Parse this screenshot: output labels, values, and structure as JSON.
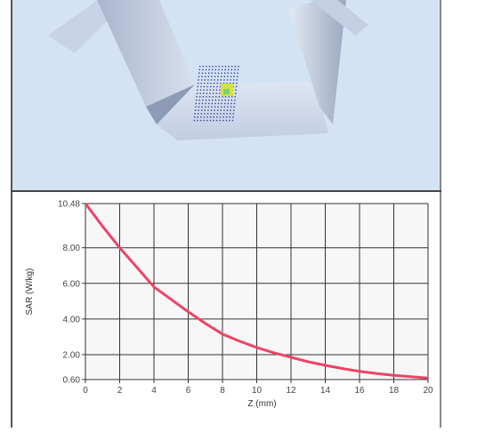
{
  "colors": {
    "scene_background": "#d3e3f3",
    "phantom": "#c4d0e4",
    "phantom_shadow": "#8e9bb6",
    "grid_dots": "#2a3c9a",
    "hotspot": "#d6e33a",
    "hotspot_core": "#7ad07a",
    "curve": "#ee4466",
    "plot_background": "#f7f7f7",
    "grid_lines": "#333333"
  },
  "chart_data": {
    "type": "line",
    "xlabel": "Z (mm)",
    "ylabel": "SAR (W/kg)",
    "xlim": [
      0,
      20
    ],
    "ylim": [
      0.6,
      10.48
    ],
    "x_ticks": [
      0,
      2,
      4,
      6,
      8,
      10,
      12,
      14,
      16,
      18,
      20
    ],
    "x_tick_labels": [
      "0",
      "2",
      "4",
      "6",
      "8",
      "10",
      "12",
      "14",
      "16",
      "18",
      "20"
    ],
    "y_ticks": [
      0.6,
      2,
      4,
      6,
      8,
      10.48
    ],
    "y_tick_labels": [
      "0.60",
      "2.00",
      "4.00",
      "6.00",
      "8.00",
      "10.48"
    ],
    "grid": true,
    "legend": "none",
    "x": [
      0,
      1,
      2,
      3,
      4,
      5,
      6,
      7,
      8,
      9,
      10,
      11,
      12,
      13,
      14,
      15,
      16,
      17,
      18,
      19,
      20
    ],
    "y": [
      10.48,
      9.2,
      8.0,
      6.9,
      5.8,
      5.1,
      4.4,
      3.75,
      3.15,
      2.75,
      2.4,
      2.1,
      1.85,
      1.6,
      1.4,
      1.22,
      1.06,
      0.94,
      0.84,
      0.76,
      0.68
    ]
  }
}
